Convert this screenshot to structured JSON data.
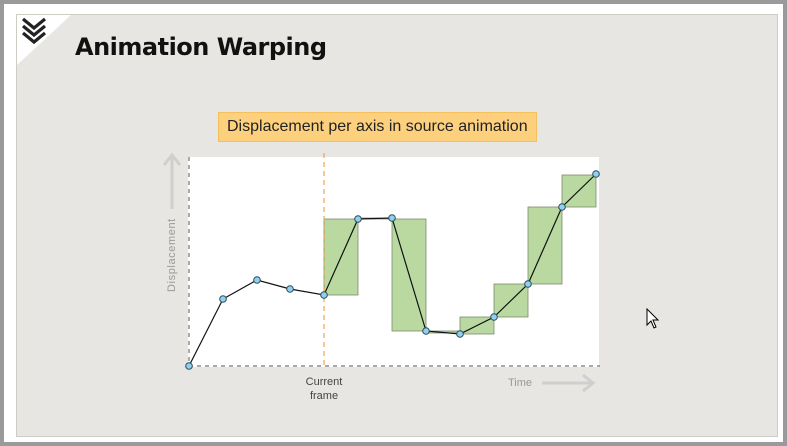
{
  "slide": {
    "title": "Animation Warping",
    "banner": "Displacement per axis in source animation"
  },
  "diagram": {
    "y_axis_label": "Displacement",
    "x_axis_label": "Time",
    "marker_label_line1": "Current",
    "marker_label_line2": "frame"
  },
  "colors": {
    "slide_bg": "#e8e6e2",
    "banner_bg": "#fdd07e",
    "marker": "#f2a24e",
    "box_fill": "#b9d9a1",
    "box_stroke": "#7a8a6e",
    "point_fill": "#8fd0ef",
    "point_stroke": "#2c4a5a"
  },
  "icons": {
    "logo": "chevron-logo-icon",
    "cursor": "mouse-pointer-icon"
  }
}
